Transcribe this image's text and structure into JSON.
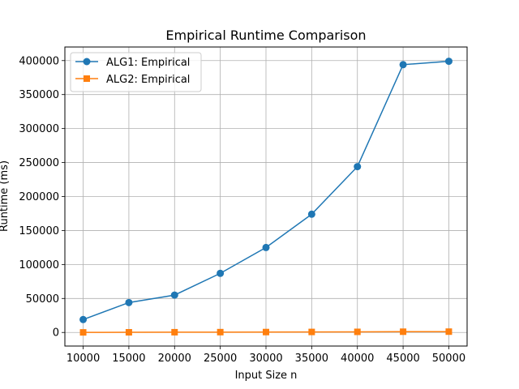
{
  "chart_data": {
    "type": "line",
    "title": "Empirical Runtime Comparison",
    "xlabel": "Input Size n",
    "ylabel": "Runtime (ms)",
    "x": [
      10000,
      15000,
      20000,
      25000,
      30000,
      35000,
      40000,
      45000,
      50000
    ],
    "xlim": [
      8000,
      52000
    ],
    "ylim": [
      -20000,
      420000
    ],
    "x_ticks": [
      10000,
      15000,
      20000,
      25000,
      30000,
      35000,
      40000,
      45000,
      50000
    ],
    "y_ticks": [
      0,
      50000,
      100000,
      150000,
      200000,
      250000,
      300000,
      350000,
      400000
    ],
    "grid": true,
    "legend_position": "top-left",
    "series": [
      {
        "name": "ALG1: Empirical",
        "color": "#1f77b4",
        "marker": "circle",
        "values": [
          19000,
          44000,
          55000,
          87000,
          125000,
          174000,
          244000,
          394000,
          399000
        ]
      },
      {
        "name": "ALG2: Empirical",
        "color": "#ff7f0e",
        "marker": "square",
        "values": [
          120,
          250,
          350,
          480,
          600,
          750,
          900,
          1100,
          1200
        ]
      }
    ]
  }
}
